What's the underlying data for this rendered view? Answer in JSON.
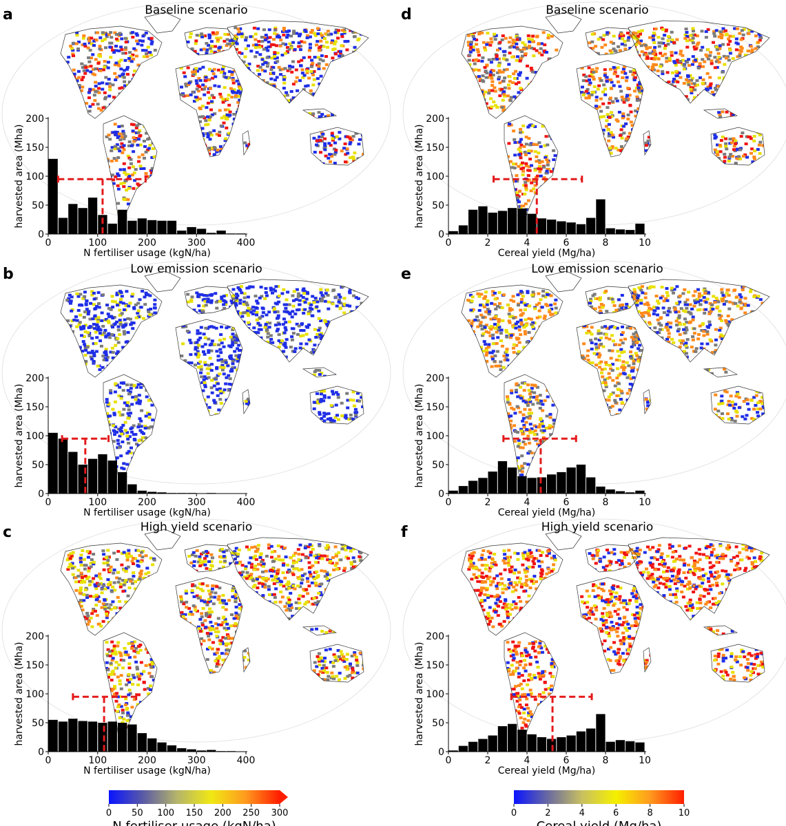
{
  "colors": {
    "bar": "#000000",
    "median_line": "#e41a1c",
    "map_blue": "#1f2ee6",
    "map_grey": "#7b7b7b",
    "map_yellow": "#e8e000",
    "map_orange": "#ff8a1c",
    "map_red": "#f01414"
  },
  "colorbars": [
    {
      "name": "n-fertiliser",
      "label": "N fertiliser usage (kgN/ha)",
      "range": [
        0,
        300
      ],
      "ticks": [
        "0",
        "50",
        "100",
        "150",
        "200",
        "250",
        "300"
      ],
      "stops": [
        "#0a14ff",
        "#5a5aa6",
        "#b5b56a",
        "#f0e814",
        "#ff9a1e",
        "#ff1e00"
      ],
      "extend_arrow": true
    },
    {
      "name": "cereal-yield",
      "label": "Cereal yield (Mg/ha)",
      "range": [
        0,
        10
      ],
      "ticks": [
        "0",
        "2",
        "4",
        "6",
        "8",
        "10"
      ],
      "stops": [
        "#0a14ff",
        "#6a6aa0",
        "#c8c060",
        "#f5f000",
        "#ff9a1e",
        "#ff1e00"
      ],
      "extend_arrow": false
    }
  ],
  "chart_data": [
    {
      "panel": "a",
      "type": "bar",
      "title": "Baseline scenario",
      "xlabel": "N fertiliser usage (kgN/ha)",
      "ylabel": "harvested area (Mha)",
      "xlim": [
        0,
        400
      ],
      "ylim": [
        0,
        200
      ],
      "xticks": [
        "0",
        "100",
        "200",
        "300",
        "400"
      ],
      "yticks": [
        "0",
        "50",
        "100",
        "150",
        "200"
      ],
      "bin_width": 20,
      "bin_start": 0,
      "values": [
        130,
        28,
        52,
        45,
        63,
        33,
        18,
        42,
        23,
        27,
        24,
        23,
        23,
        6,
        12,
        9,
        2,
        6,
        1,
        1
      ],
      "median": 110,
      "iqr": [
        20,
        197
      ],
      "median_marker_y": 95
    },
    {
      "panel": "b",
      "type": "bar",
      "title": "Low emission scenario",
      "xlabel": "N fertiliser usage (kgN/ha)",
      "ylabel": "harvested area (Mha)",
      "xlim": [
        0,
        400
      ],
      "ylim": [
        0,
        200
      ],
      "xticks": [
        "0",
        "100",
        "200",
        "300",
        "400"
      ],
      "yticks": [
        "0",
        "50",
        "100",
        "150",
        "200"
      ],
      "bin_width": 20,
      "bin_start": 0,
      "values": [
        105,
        95,
        72,
        50,
        60,
        68,
        57,
        37,
        16,
        5,
        3,
        2,
        1,
        1,
        1,
        0,
        1,
        0,
        0,
        0
      ],
      "median": 75,
      "iqr": [
        28,
        122
      ],
      "median_marker_y": 95
    },
    {
      "panel": "c",
      "type": "bar",
      "title": "High yield scenario",
      "xlabel": "N fertiliser usage (kgN/ha)",
      "ylabel": "harvested area (Mha)",
      "xlim": [
        0,
        400
      ],
      "ylim": [
        0,
        200
      ],
      "xticks": [
        "0",
        "100",
        "200",
        "300",
        "400"
      ],
      "yticks": [
        "0",
        "50",
        "100",
        "150",
        "200"
      ],
      "bin_width": 20,
      "bin_start": 0,
      "values": [
        55,
        52,
        57,
        53,
        52,
        50,
        52,
        50,
        47,
        32,
        23,
        16,
        11,
        6,
        4,
        2,
        3,
        1,
        1,
        0
      ],
      "median": 113,
      "iqr": [
        50,
        178
      ],
      "median_marker_y": 95
    },
    {
      "panel": "d",
      "type": "bar",
      "title": "Baseline scenario",
      "xlabel": "Cereal yield (Mg/ha)",
      "ylabel": "harvested area (Mha)",
      "xlim": [
        0,
        10
      ],
      "ylim": [
        0,
        200
      ],
      "xticks": [
        "0",
        "2",
        "4",
        "6",
        "8",
        "10"
      ],
      "yticks": [
        "0",
        "50",
        "100",
        "150",
        "200"
      ],
      "bin_width": 0.5,
      "bin_start": 0,
      "values": [
        5,
        15,
        42,
        48,
        37,
        40,
        45,
        44,
        35,
        27,
        25,
        22,
        20,
        17,
        28,
        60,
        10,
        8,
        7,
        18
      ],
      "median": 4.5,
      "iqr": [
        2.3,
        6.8
      ],
      "median_marker_y": 95
    },
    {
      "panel": "e",
      "type": "bar",
      "title": "Low emission scenario",
      "xlabel": "Cereal yield (Mg/ha)",
      "ylabel": "harvested area (Mha)",
      "xlim": [
        0,
        10
      ],
      "ylim": [
        0,
        200
      ],
      "xticks": [
        "0",
        "2",
        "4",
        "6",
        "8",
        "10"
      ],
      "yticks": [
        "0",
        "50",
        "100",
        "150",
        "200"
      ],
      "bin_width": 0.5,
      "bin_start": 0,
      "values": [
        5,
        13,
        22,
        27,
        38,
        56,
        45,
        30,
        27,
        28,
        33,
        37,
        45,
        50,
        28,
        12,
        7,
        4,
        2,
        5
      ],
      "median": 4.7,
      "iqr": [
        2.8,
        6.5
      ],
      "median_marker_y": 95
    },
    {
      "panel": "f",
      "type": "bar",
      "title": "High yield scenario",
      "xlabel": "Cereal yield (Mg/ha)",
      "ylabel": "harvested area (Mha)",
      "xlim": [
        0,
        10
      ],
      "ylim": [
        0,
        200
      ],
      "xticks": [
        "0",
        "2",
        "4",
        "6",
        "8",
        "10"
      ],
      "yticks": [
        "0",
        "50",
        "100",
        "150",
        "200"
      ],
      "bin_width": 0.5,
      "bin_start": 0,
      "values": [
        2,
        10,
        17,
        22,
        28,
        44,
        48,
        38,
        30,
        25,
        22,
        25,
        28,
        35,
        40,
        65,
        17,
        20,
        18,
        16
      ],
      "median": 5.3,
      "iqr": [
        3.2,
        7.3
      ],
      "median_marker_y": 95
    }
  ]
}
